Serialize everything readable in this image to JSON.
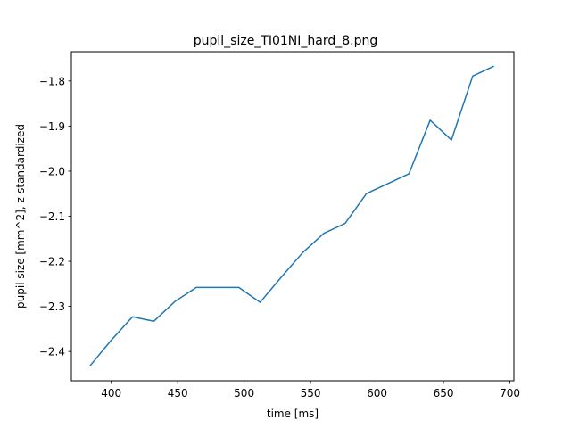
{
  "chart_data": {
    "type": "line",
    "title": "pupil_size_TI01NI_hard_8.png",
    "xlabel": "time [ms]",
    "ylabel": "pupil size [mm^2], z-standardized",
    "xlim": [
      370,
      703
    ],
    "ylim": [
      -2.465,
      -1.735
    ],
    "xticks": [
      400,
      450,
      500,
      550,
      600,
      650,
      700
    ],
    "yticks": [
      -2.4,
      -2.3,
      -2.2,
      -2.1,
      -2.0,
      -1.9,
      -1.8
    ],
    "xtick_labels": [
      "400",
      "450",
      "500",
      "550",
      "600",
      "650",
      "700"
    ],
    "ytick_labels": [
      "−2.4",
      "−2.3",
      "−2.2",
      "−2.1",
      "−2.0",
      "−1.9",
      "−1.8"
    ],
    "grid": false,
    "color": "#1f77b4",
    "series": [
      {
        "x": [
          384,
          400,
          416,
          432,
          448,
          464,
          480,
          496,
          512,
          528,
          544,
          560,
          576,
          592,
          608,
          624,
          640,
          656,
          672,
          688
        ],
        "y": [
          -2.432,
          -2.375,
          -2.323,
          -2.333,
          -2.289,
          -2.258,
          -2.258,
          -2.258,
          -2.291,
          -2.235,
          -2.181,
          -2.138,
          -2.116,
          -2.05,
          -2.028,
          -2.006,
          -1.887,
          -1.931,
          -1.789,
          -1.767
        ]
      }
    ]
  }
}
